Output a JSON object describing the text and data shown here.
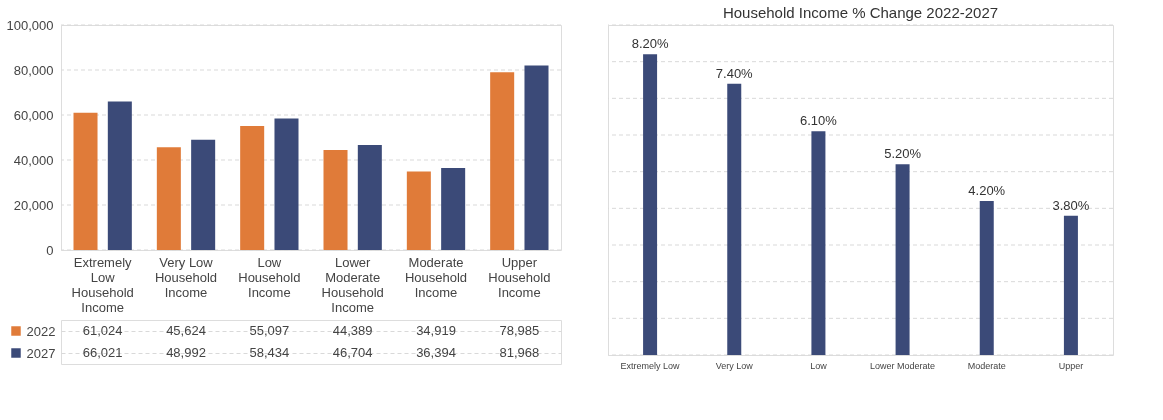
{
  "chart_data": [
    {
      "type": "bar",
      "categories": [
        "Extremely Low Household Income",
        "Very Low Household Income",
        "Low Household Income",
        "Lower Moderate Household Income",
        "Moderate Household Income",
        "Upper Household Income"
      ],
      "series": [
        {
          "name": "2022",
          "color": "#e07b39",
          "values": [
            61024,
            45624,
            55097,
            44389,
            34919,
            78985
          ],
          "value_labels": [
            "61,024",
            "45,624",
            "55,097",
            "44,389",
            "34,919",
            "78,985"
          ]
        },
        {
          "name": "2027",
          "color": "#3b4a78",
          "values": [
            66021,
            48992,
            58434,
            46704,
            36394,
            81968
          ],
          "value_labels": [
            "66,021",
            "48,992",
            "58,434",
            "46,704",
            "36,394",
            "81,968"
          ]
        }
      ],
      "ylim": [
        0,
        100000
      ],
      "yticks": [
        0,
        {
          "value": 20000,
          "label": "20,000"
        },
        {
          "value": 40000,
          "label": "40,000"
        },
        {
          "value": 60000,
          "label": "60,000"
        },
        {
          "value": 80000,
          "label": "80,000"
        },
        {
          "value": 100000,
          "label": "100,000"
        }
      ],
      "grid": "y",
      "legend": "bottom"
    },
    {
      "type": "bar",
      "title": "Household Income % Change 2022-2027",
      "categories": [
        "Extremely Low",
        "Very Low",
        "Low",
        "Lower Moderate",
        "Moderate",
        "Upper"
      ],
      "values": [
        8.2,
        7.4,
        6.1,
        5.2,
        4.2,
        3.8
      ],
      "color": "#3b4a78",
      "value_labels": [
        "8.20%",
        "7.40%",
        "6.10%",
        "5.20%",
        "4.20%",
        "3.80%"
      ],
      "ylim": [
        0,
        9
      ],
      "yticks": [
        {
          "value": 0,
          "label": null
        },
        {
          "value": 1,
          "label": null
        },
        {
          "value": 2,
          "label": null
        },
        {
          "value": 3,
          "label": null
        },
        {
          "value": 4,
          "label": null
        },
        {
          "value": 5,
          "label": null
        },
        {
          "value": 6,
          "label": null
        },
        {
          "value": 7,
          "label": null
        },
        {
          "value": 8,
          "label": null
        },
        {
          "value": 9,
          "label": null
        }
      ],
      "grid": "y",
      "tick_labels": "x"
    }
  ]
}
